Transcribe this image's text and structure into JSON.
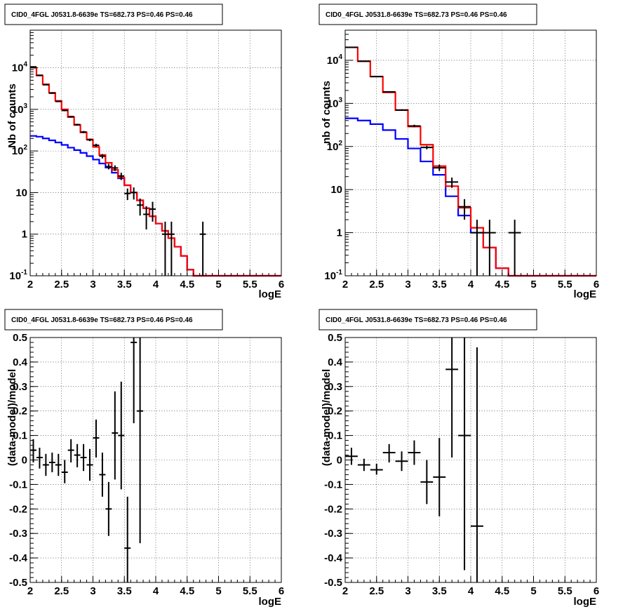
{
  "chart_data": [
    {
      "type": "line",
      "title": "CID0_4FGL J0531.8-6639e TS=682.73 PS=0.46 PS=0.46",
      "xlabel": "logE",
      "ylabel": "Nb of counts",
      "xlim": [
        2,
        6
      ],
      "ylim": [
        0.1,
        80000
      ],
      "yscale": "log",
      "xticks": [
        "2",
        "2.5",
        "3",
        "3.5",
        "4",
        "4.5",
        "5",
        "5.5",
        "6"
      ],
      "yticks": [
        {
          "v": 0.1,
          "label": "10^-1"
        },
        {
          "v": 1,
          "label": "1"
        },
        {
          "v": 10,
          "label": "10"
        },
        {
          "v": 100,
          "label": "10^2"
        },
        {
          "v": 1000,
          "label": "10^3"
        },
        {
          "v": 10000,
          "label": "10^4"
        }
      ],
      "grid": true,
      "colors": {
        "total_model": "#ff0000",
        "source_model": "#0000ff",
        "data": "#000000"
      },
      "bin_edges": [
        2.0,
        2.1,
        2.2,
        2.3,
        2.4,
        2.5,
        2.6,
        2.7,
        2.8,
        2.9,
        3.0,
        3.1,
        3.2,
        3.3,
        3.4,
        3.5,
        3.6,
        3.7,
        3.8,
        3.9,
        4.0,
        4.1,
        4.2,
        4.3,
        4.4,
        4.5,
        4.6,
        4.7,
        4.8,
        4.9,
        5.0,
        5.1,
        5.2,
        5.3,
        5.4,
        5.5,
        5.6,
        5.7,
        5.8,
        5.9,
        6.0
      ],
      "series": [
        {
          "values": [
            10000,
            6500,
            4000,
            2500,
            1600,
            1000,
            650,
            420,
            280,
            190,
            125,
            80,
            52,
            35,
            23,
            15,
            10,
            6.5,
            4.2,
            2.7,
            1.8,
            1.2,
            0.8,
            0.5,
            0.3,
            0.14,
            0.1,
            0.1,
            0.1,
            0.1,
            0.1,
            0.1,
            0.1,
            0.1,
            0.1,
            0.1,
            0.1,
            0.1,
            0.1,
            0.1
          ]
        },
        {
          "values": [
            230,
            220,
            200,
            180,
            160,
            140,
            120,
            105,
            90,
            75,
            62,
            50,
            40,
            30,
            22,
            15,
            10,
            6.5,
            4.2,
            2.7,
            1.8,
            1.2,
            0.8,
            0.5,
            0.3,
            0.14,
            0.1,
            0.1,
            0.1,
            0.1,
            0.1,
            0.1,
            0.1,
            0.1,
            0.1,
            0.1,
            0.1,
            0.1,
            0.1,
            0.1
          ]
        }
      ],
      "points": [
        {
          "x": 2.05,
          "y": 10500,
          "lo": 10300,
          "hi": 10700
        },
        {
          "x": 2.15,
          "y": 6600,
          "lo": 6450,
          "hi": 6750
        },
        {
          "x": 2.25,
          "y": 3900,
          "lo": 3800,
          "hi": 4000
        },
        {
          "x": 2.35,
          "y": 2450,
          "lo": 2350,
          "hi": 2550
        },
        {
          "x": 2.45,
          "y": 1550,
          "lo": 1500,
          "hi": 1600
        },
        {
          "x": 2.55,
          "y": 940,
          "lo": 900,
          "hi": 980
        },
        {
          "x": 2.65,
          "y": 670,
          "lo": 640,
          "hi": 700
        },
        {
          "x": 2.75,
          "y": 430,
          "lo": 410,
          "hi": 450
        },
        {
          "x": 2.85,
          "y": 285,
          "lo": 268,
          "hi": 302
        },
        {
          "x": 2.95,
          "y": 185,
          "lo": 172,
          "hi": 198
        },
        {
          "x": 3.05,
          "y": 137,
          "lo": 125,
          "hi": 149
        },
        {
          "x": 3.15,
          "y": 75,
          "lo": 66,
          "hi": 84
        },
        {
          "x": 3.25,
          "y": 42,
          "lo": 36,
          "hi": 49
        },
        {
          "x": 3.35,
          "y": 39,
          "lo": 33,
          "hi": 45
        },
        {
          "x": 3.45,
          "y": 25,
          "lo": 20,
          "hi": 30
        },
        {
          "x": 3.55,
          "y": 9.5,
          "lo": 6.6,
          "hi": 12.5
        },
        {
          "x": 3.65,
          "y": 10,
          "lo": 6.8,
          "hi": 13.3
        },
        {
          "x": 3.75,
          "y": 5,
          "lo": 2.8,
          "hi": 7.2
        },
        {
          "x": 3.85,
          "y": 3,
          "lo": 1.3,
          "hi": 4.7
        },
        {
          "x": 3.95,
          "y": 4,
          "lo": 2.0,
          "hi": 6.0
        },
        {
          "x": 4.15,
          "y": 1,
          "lo": 0.1,
          "hi": 2.0
        },
        {
          "x": 4.25,
          "y": 1,
          "lo": 0.1,
          "hi": 2.0
        },
        {
          "x": 4.75,
          "y": 1,
          "lo": 0.1,
          "hi": 2.0
        }
      ]
    },
    {
      "type": "line",
      "title": "CID0_4FGL J0531.8-6639e TS=682.73 PS=0.46 PS=0.46",
      "xlabel": "logE",
      "ylabel": "nb of counts",
      "xlim": [
        2,
        6
      ],
      "ylim": [
        0.1,
        50000
      ],
      "yscale": "log",
      "xticks": [
        "2",
        "2.5",
        "3",
        "3.5",
        "4",
        "4.5",
        "5",
        "5.5",
        "6"
      ],
      "yticks": [
        {
          "v": 0.1,
          "label": "10^-1"
        },
        {
          "v": 1,
          "label": "1"
        },
        {
          "v": 10,
          "label": "10"
        },
        {
          "v": 100,
          "label": "10^2"
        },
        {
          "v": 1000,
          "label": "10^3"
        },
        {
          "v": 10000,
          "label": "10^4"
        }
      ],
      "grid": true,
      "colors": {
        "total_model": "#ff0000",
        "source_model": "#0000ff",
        "data": "#000000"
      },
      "bin_edges": [
        2.0,
        2.2,
        2.4,
        2.6,
        2.8,
        3.0,
        3.2,
        3.4,
        3.6,
        3.8,
        4.0,
        4.2,
        4.4,
        4.6,
        4.8,
        5.0,
        5.2,
        5.4,
        5.6,
        5.8,
        6.0
      ],
      "series": [
        {
          "values": [
            20000,
            9500,
            4200,
            1800,
            700,
            290,
            110,
            35,
            12,
            3.8,
            1.3,
            0.45,
            0.15,
            0.1,
            0.1,
            0.1,
            0.1,
            0.1,
            0.1,
            0.1
          ]
        },
        {
          "values": [
            450,
            400,
            330,
            240,
            150,
            90,
            45,
            22,
            7,
            2.5,
            1.0,
            0.45,
            0.15,
            0.1,
            0.1,
            0.1,
            0.1,
            0.1,
            0.1,
            0.1
          ]
        }
      ],
      "points": [
        {
          "x": 2.1,
          "y": 20000,
          "lo": 19800,
          "hi": 20200
        },
        {
          "x": 2.3,
          "y": 9500,
          "lo": 9350,
          "hi": 9650
        },
        {
          "x": 2.5,
          "y": 4200,
          "lo": 4100,
          "hi": 4300
        },
        {
          "x": 2.7,
          "y": 1850,
          "lo": 1790,
          "hi": 1910
        },
        {
          "x": 2.9,
          "y": 700,
          "lo": 670,
          "hi": 730
        },
        {
          "x": 3.1,
          "y": 300,
          "lo": 280,
          "hi": 320
        },
        {
          "x": 3.3,
          "y": 95,
          "lo": 86,
          "hi": 104
        },
        {
          "x": 3.5,
          "y": 32,
          "lo": 27,
          "hi": 38
        },
        {
          "x": 3.7,
          "y": 15,
          "lo": 11,
          "hi": 19
        },
        {
          "x": 3.9,
          "y": 4,
          "lo": 2.0,
          "hi": 6.0
        },
        {
          "x": 4.1,
          "y": 1,
          "lo": 0.1,
          "hi": 2.0
        },
        {
          "x": 4.3,
          "y": 1,
          "lo": 0.1,
          "hi": 2.0
        },
        {
          "x": 4.7,
          "y": 1,
          "lo": 0.1,
          "hi": 2.0
        }
      ]
    },
    {
      "type": "scatter",
      "title": "CID0_4FGL J0531.8-6639e TS=682.73 PS=0.46 PS=0.46",
      "xlabel": "logE",
      "ylabel": "(data-model)/model",
      "xlim": [
        2,
        6
      ],
      "ylim": [
        -0.5,
        0.5
      ],
      "xticks": [
        "2",
        "2.5",
        "3",
        "3.5",
        "4",
        "4.5",
        "5",
        "5.5",
        "6"
      ],
      "yticks": [
        "-0.5",
        "-0.4",
        "-0.3",
        "-0.2",
        "-0.1",
        "0",
        "0.1",
        "0.2",
        "0.3",
        "0.4",
        "0.5"
      ],
      "grid": true,
      "points": [
        {
          "x": 2.05,
          "y": 0.04,
          "lo": -0.01,
          "hi": 0.085
        },
        {
          "x": 2.15,
          "y": 0.01,
          "lo": -0.035,
          "hi": 0.05
        },
        {
          "x": 2.25,
          "y": -0.02,
          "lo": -0.065,
          "hi": 0.025
        },
        {
          "x": 2.35,
          "y": -0.01,
          "lo": -0.05,
          "hi": 0.03
        },
        {
          "x": 2.45,
          "y": -0.02,
          "lo": -0.065,
          "hi": 0.025
        },
        {
          "x": 2.55,
          "y": -0.05,
          "lo": -0.095,
          "hi": 0.0
        },
        {
          "x": 2.65,
          "y": 0.04,
          "lo": -0.01,
          "hi": 0.085
        },
        {
          "x": 2.75,
          "y": 0.02,
          "lo": -0.03,
          "hi": 0.065
        },
        {
          "x": 2.85,
          "y": 0.01,
          "lo": -0.045,
          "hi": 0.065
        },
        {
          "x": 2.95,
          "y": -0.02,
          "lo": -0.085,
          "hi": 0.045
        },
        {
          "x": 3.05,
          "y": 0.09,
          "lo": 0.01,
          "hi": 0.165
        },
        {
          "x": 3.15,
          "y": -0.06,
          "lo": -0.15,
          "hi": 0.03
        },
        {
          "x": 3.25,
          "y": -0.2,
          "lo": -0.31,
          "hi": -0.09
        },
        {
          "x": 3.35,
          "y": 0.11,
          "lo": -0.08,
          "hi": 0.28
        },
        {
          "x": 3.45,
          "y": 0.1,
          "lo": -0.12,
          "hi": 0.32
        },
        {
          "x": 3.55,
          "y": -0.36,
          "lo": -0.5,
          "hi": -0.15
        },
        {
          "x": 3.65,
          "y": 0.48,
          "lo": 0.15,
          "hi": 0.5
        },
        {
          "x": 3.75,
          "y": 0.2,
          "lo": -0.34,
          "hi": 0.5
        }
      ]
    },
    {
      "type": "scatter",
      "title": "CID0_4FGL J0531.8-6639e TS=682.73 PS=0.46 PS=0.46",
      "xlabel": "logE",
      "ylabel": "(data-model)/model",
      "xlim": [
        2,
        6
      ],
      "ylim": [
        -0.5,
        0.5
      ],
      "xticks": [
        "2",
        "2.5",
        "3",
        "3.5",
        "4",
        "4.5",
        "5",
        "5.5",
        "6"
      ],
      "yticks": [
        "-0.5",
        "-0.4",
        "-0.3",
        "-0.2",
        "-0.1",
        "0",
        "0.1",
        "0.2",
        "0.3",
        "0.4",
        "0.5"
      ],
      "grid": true,
      "points": [
        {
          "x": 2.1,
          "y": 0.015,
          "lo": -0.02,
          "hi": 0.05
        },
        {
          "x": 2.3,
          "y": -0.02,
          "lo": -0.045,
          "hi": 0.005
        },
        {
          "x": 2.5,
          "y": -0.04,
          "lo": -0.06,
          "hi": -0.015
        },
        {
          "x": 2.7,
          "y": 0.03,
          "lo": -0.01,
          "hi": 0.065
        },
        {
          "x": 2.9,
          "y": -0.005,
          "lo": -0.045,
          "hi": 0.035
        },
        {
          "x": 3.1,
          "y": 0.03,
          "lo": -0.02,
          "hi": 0.08
        },
        {
          "x": 3.3,
          "y": -0.09,
          "lo": -0.18,
          "hi": 0.0
        },
        {
          "x": 3.5,
          "y": -0.07,
          "lo": -0.23,
          "hi": 0.09
        },
        {
          "x": 3.7,
          "y": 0.37,
          "lo": 0.01,
          "hi": 0.5
        },
        {
          "x": 3.9,
          "y": 0.1,
          "lo": -0.45,
          "hi": 0.5
        },
        {
          "x": 4.1,
          "y": -0.27,
          "lo": -0.5,
          "hi": 0.46
        }
      ]
    }
  ]
}
